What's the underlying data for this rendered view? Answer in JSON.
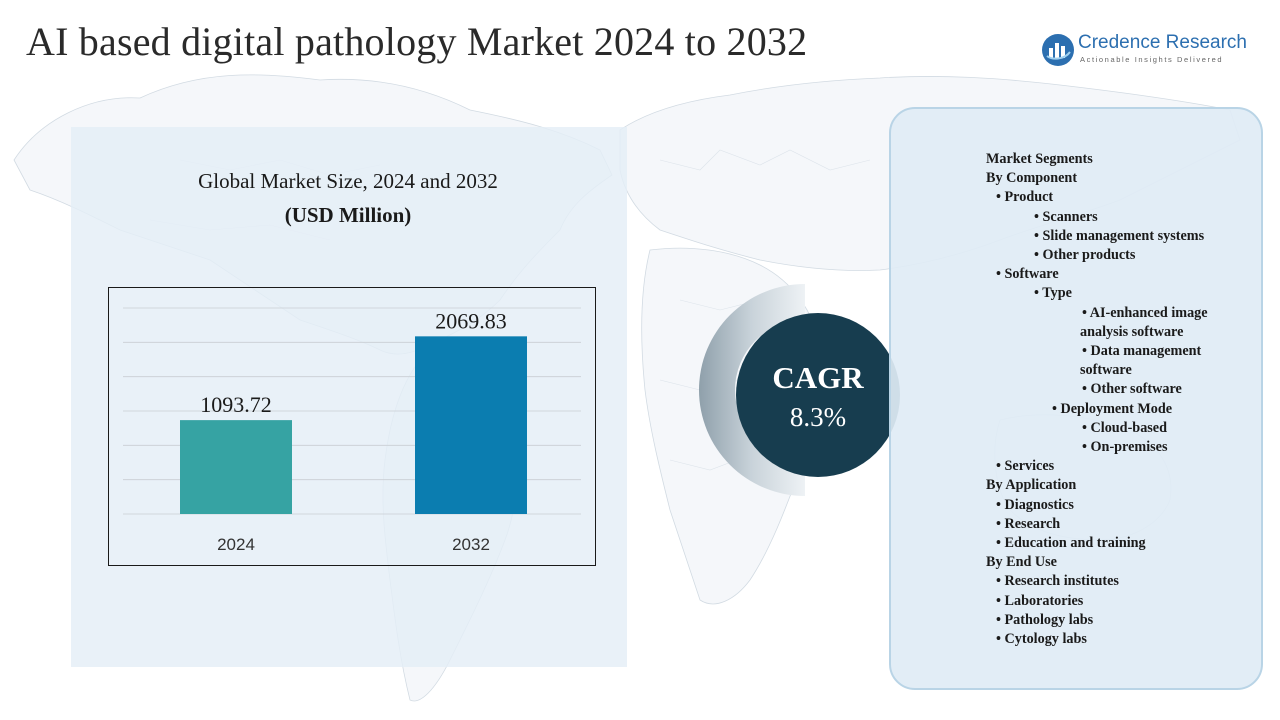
{
  "header": {
    "title": "AI based digital pathology Market 2024 to 2032"
  },
  "logo": {
    "name": "Credence Research",
    "tagline": "Actionable Insights Delivered"
  },
  "colors": {
    "bar_2024": "#36a3a3",
    "bar_2032": "#0b7db0",
    "cagr_circle": "#173d4f",
    "panel_bg": "#e4eef7",
    "brand": "#2c6fb0"
  },
  "chart_data": {
    "type": "bar",
    "title": "Global Market Size, 2024 and 2032",
    "subtitle": "(USD Million)",
    "categories": [
      "2024",
      "2032"
    ],
    "values": [
      1093.72,
      2069.83
    ],
    "value_labels": [
      "1093.72",
      "2069.83"
    ],
    "ylim": [
      0,
      2400
    ],
    "grid": true,
    "y_axis_labels": false
  },
  "cagr": {
    "label": "CAGR",
    "value": "8.3%"
  },
  "segments": {
    "lines": [
      {
        "text": "Market Segments",
        "level": 0
      },
      {
        "text": "By Component",
        "level": 0
      },
      {
        "text": "• Product",
        "level": 1
      },
      {
        "text": "• Scanners",
        "level": 3
      },
      {
        "text": "• Slide management systems",
        "level": 3
      },
      {
        "text": "• Other products",
        "level": 3
      },
      {
        "text": "• Software",
        "level": 1
      },
      {
        "text": "• Type",
        "level": 3
      },
      {
        "text": "• AI-enhanced image",
        "level": 5
      },
      {
        "text": "analysis software",
        "level": 4
      },
      {
        "text": "• Data management",
        "level": 5
      },
      {
        "text": "software",
        "level": 4
      },
      {
        "text": "• Other software",
        "level": 5
      },
      {
        "text": "• Deployment Mode",
        "level": 2
      },
      {
        "text": "• Cloud-based",
        "level": 5
      },
      {
        "text": "• On-premises",
        "level": 5
      },
      {
        "text": "• Services",
        "level": 1
      },
      {
        "text": "By Application",
        "level": 0
      },
      {
        "text": "• Diagnostics",
        "level": 1
      },
      {
        "text": "• Research",
        "level": 1
      },
      {
        "text": "• Education and training",
        "level": 1
      },
      {
        "text": "By End Use",
        "level": 0
      },
      {
        "text": "• Research institutes",
        "level": 1
      },
      {
        "text": "• Laboratories",
        "level": 1
      },
      {
        "text": "• Pathology labs",
        "level": 1
      },
      {
        "text": "• Cytology labs",
        "level": 1
      }
    ]
  }
}
